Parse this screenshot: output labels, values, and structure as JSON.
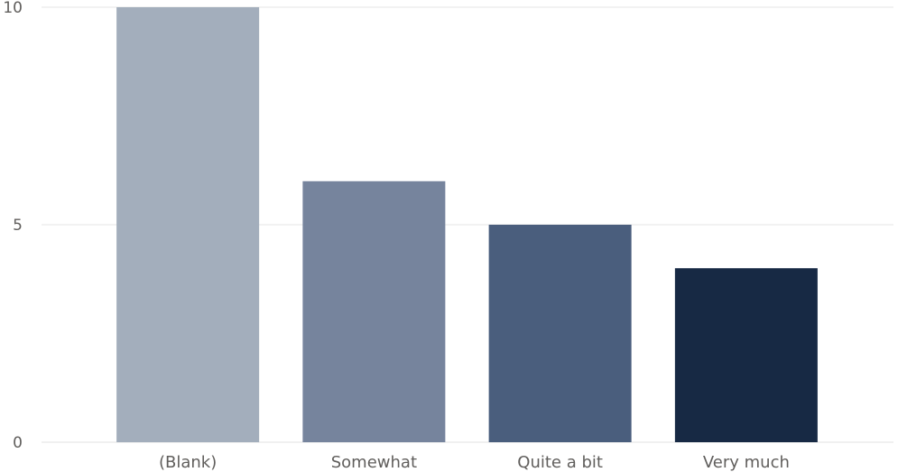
{
  "chart_data": {
    "type": "bar",
    "title": "",
    "xlabel": "",
    "ylabel": "",
    "categories": [
      "(Blank)",
      "Somewhat",
      "Quite a bit",
      "Very much"
    ],
    "values": [
      10,
      6,
      5,
      4
    ],
    "colors": [
      "#a3aebc",
      "#76849d",
      "#4a5e7d",
      "#172944"
    ],
    "ylim": [
      0,
      10
    ],
    "yticks": [
      0,
      5,
      10
    ],
    "grid": true,
    "legend": "none"
  }
}
